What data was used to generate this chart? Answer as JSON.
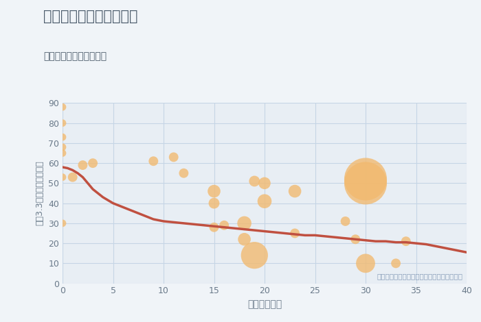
{
  "title_line1": "三重県松阪市下蛸路町の",
  "title_line2": "築年数別中古戸建て価格",
  "xlabel": "築年数（年）",
  "ylabel": "坪（3.3㎡）単価（万円）",
  "xlim": [
    0,
    40
  ],
  "ylim": [
    0,
    90
  ],
  "xticks": [
    0,
    5,
    10,
    15,
    20,
    25,
    30,
    35,
    40
  ],
  "yticks": [
    0,
    10,
    20,
    30,
    40,
    50,
    60,
    70,
    80,
    90
  ],
  "fig_bg_color": "#f0f4f8",
  "plot_bg_color": "#e8eef4",
  "grid_color": "#c5d5e5",
  "bubble_color": "#f2b96e",
  "bubble_alpha": 0.78,
  "line_color": "#c05040",
  "line_width": 2.5,
  "annotation": "円の大きさは、取引のあった物件面積を示す",
  "annotation_color": "#8a9fba",
  "title_color": "#4a5a6a",
  "axis_label_color": "#6a7a8a",
  "tick_color": "#6a7a8a",
  "scatter_x": [
    0,
    0,
    0,
    0,
    0,
    0,
    0,
    1,
    2,
    3,
    9,
    11,
    12,
    15,
    15,
    15,
    16,
    18,
    18,
    19,
    19,
    20,
    20,
    23,
    23,
    28,
    29,
    30,
    30,
    30,
    33,
    34
  ],
  "scatter_y": [
    88,
    80,
    73,
    68,
    65,
    53,
    30,
    53,
    59,
    60,
    61,
    63,
    55,
    46,
    40,
    28,
    29,
    22,
    30,
    14,
    51,
    41,
    50,
    46,
    25,
    31,
    22,
    52,
    50,
    10,
    10,
    21
  ],
  "scatter_sizes": [
    60,
    60,
    60,
    60,
    60,
    60,
    60,
    100,
    100,
    100,
    100,
    100,
    100,
    180,
    130,
    100,
    100,
    180,
    220,
    800,
    130,
    220,
    160,
    180,
    100,
    100,
    100,
    2000,
    2000,
    400,
    100,
    100
  ],
  "trend_x": [
    0,
    0.5,
    1,
    1.5,
    2,
    2.5,
    3,
    4,
    5,
    6,
    7,
    8,
    9,
    10,
    11,
    12,
    13,
    14,
    15,
    16,
    17,
    18,
    19,
    20,
    21,
    22,
    23,
    24,
    25,
    26,
    27,
    28,
    29,
    30,
    31,
    32,
    33,
    34,
    35,
    36,
    37,
    38,
    39,
    40
  ],
  "trend_y": [
    58,
    57.5,
    56.5,
    55,
    53,
    50,
    47,
    43,
    40,
    38,
    36,
    34,
    32,
    31,
    30.5,
    30,
    29.5,
    29,
    28.5,
    28,
    27.5,
    27,
    26.5,
    26,
    25.5,
    25,
    24.5,
    24,
    24,
    23.5,
    23,
    22.5,
    22,
    21.5,
    21,
    21,
    20.5,
    20.5,
    20,
    19.5,
    18.5,
    17.5,
    16.5,
    15.5
  ]
}
